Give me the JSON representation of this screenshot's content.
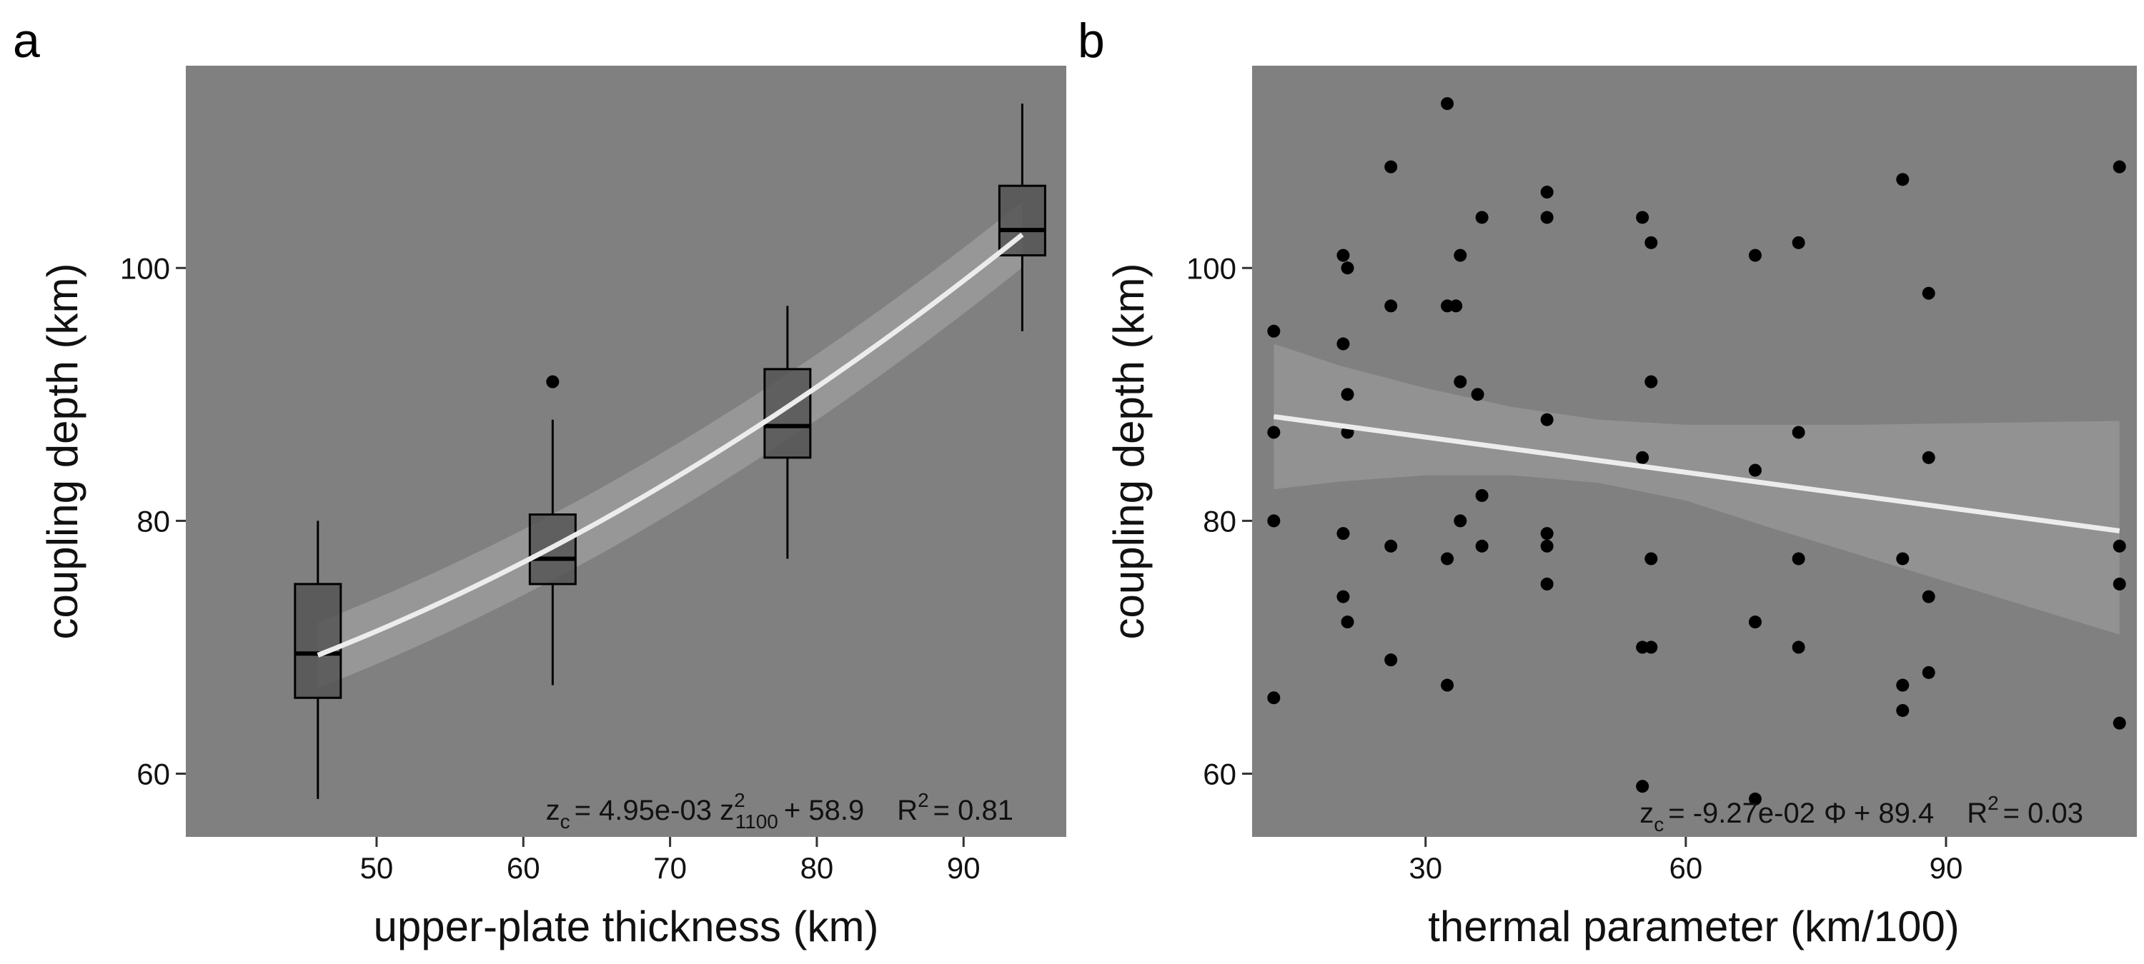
{
  "chart_data": [
    {
      "panel": "a",
      "type": "box",
      "xlabel": "upper-plate thickness (km)",
      "ylabel": "coupling depth (km)",
      "xlim": [
        37,
        97
      ],
      "ylim": [
        55,
        116
      ],
      "xticks": [
        50,
        60,
        70,
        80,
        90
      ],
      "yticks": [
        60,
        80,
        100
      ],
      "boxes": [
        {
          "x": 46,
          "whisker_low": 58,
          "q1": 66,
          "median": 69.5,
          "q3": 75,
          "whisker_high": 80,
          "outliers": []
        },
        {
          "x": 62,
          "whisker_low": 67,
          "q1": 75,
          "median": 77,
          "q3": 80.5,
          "whisker_high": 88,
          "outliers": [
            91
          ]
        },
        {
          "x": 78,
          "whisker_low": 77,
          "q1": 85,
          "median": 87.5,
          "q3": 92,
          "whisker_high": 97,
          "outliers": []
        },
        {
          "x": 94,
          "whisker_low": 95,
          "q1": 101,
          "median": 103,
          "q3": 106.5,
          "whisker_high": 113,
          "outliers": []
        }
      ],
      "fit": {
        "type": "quadratic",
        "a": 0.00495,
        "c": 58.9,
        "x_range": [
          46,
          94
        ],
        "band_halfwidth": 2.6
      },
      "annotation": {
        "z": "z",
        "z_sub": "c",
        "eq_part1": "= 4.95e-03 z",
        "var_sup": "2",
        "var_sub": "1100",
        "eq_part2": "+ 58.9",
        "r": "R",
        "r_sup": "2",
        "r_val": "= 0.81"
      }
    },
    {
      "panel": "b",
      "type": "scatter",
      "xlabel": "thermal parameter (km/100)",
      "ylabel": "coupling depth (km)",
      "xlim": [
        10,
        112
      ],
      "ylim": [
        55,
        116
      ],
      "xticks": [
        30,
        60,
        90
      ],
      "yticks": [
        60,
        80,
        100
      ],
      "points": [
        [
          12.5,
          95
        ],
        [
          12.5,
          87
        ],
        [
          12.5,
          80
        ],
        [
          12.5,
          66
        ],
        [
          20.5,
          101
        ],
        [
          21,
          100
        ],
        [
          20.5,
          94
        ],
        [
          21,
          90
        ],
        [
          21,
          87
        ],
        [
          20.5,
          79
        ],
        [
          20.5,
          74
        ],
        [
          21,
          72
        ],
        [
          26,
          108
        ],
        [
          26,
          97
        ],
        [
          26,
          78
        ],
        [
          26,
          69
        ],
        [
          32.5,
          113
        ],
        [
          32.5,
          97
        ],
        [
          33.5,
          97
        ],
        [
          34,
          101
        ],
        [
          34,
          91
        ],
        [
          34,
          80
        ],
        [
          32.5,
          77
        ],
        [
          32.5,
          67
        ],
        [
          36.5,
          104
        ],
        [
          36,
          90
        ],
        [
          36.5,
          82
        ],
        [
          36.5,
          78
        ],
        [
          44,
          106
        ],
        [
          44,
          104
        ],
        [
          44,
          88
        ],
        [
          44,
          79
        ],
        [
          44,
          78
        ],
        [
          44,
          75
        ],
        [
          55,
          104
        ],
        [
          56,
          102
        ],
        [
          56,
          91
        ],
        [
          55,
          85
        ],
        [
          56,
          77
        ],
        [
          55,
          70
        ],
        [
          56,
          70
        ],
        [
          55,
          59
        ],
        [
          68,
          101
        ],
        [
          68,
          84
        ],
        [
          68,
          72
        ],
        [
          68,
          58
        ],
        [
          73,
          102
        ],
        [
          73,
          87
        ],
        [
          73,
          77
        ],
        [
          73,
          70
        ],
        [
          85,
          107
        ],
        [
          85,
          77
        ],
        [
          85,
          67
        ],
        [
          85,
          65
        ],
        [
          88,
          98
        ],
        [
          88,
          85
        ],
        [
          88,
          74
        ],
        [
          88,
          68
        ],
        [
          110,
          108
        ],
        [
          110,
          78
        ],
        [
          110,
          75
        ],
        [
          110,
          64
        ]
      ],
      "fit": {
        "type": "linear",
        "slope": -0.0927,
        "intercept": 89.4,
        "x_range": [
          12.5,
          110
        ]
      },
      "band": {
        "x": [
          12.5,
          20,
          30,
          40,
          50,
          60,
          70,
          80,
          90,
          100,
          110
        ],
        "lower": [
          82.5,
          83.1,
          83.6,
          83.6,
          83.0,
          81.6,
          79.4,
          77.3,
          75.2,
          73.1,
          71.0
        ],
        "upper": [
          94.0,
          92.3,
          90.5,
          89.0,
          88.0,
          87.6,
          87.6,
          87.6,
          87.7,
          87.8,
          87.9
        ]
      },
      "annotation": {
        "z": "z",
        "z_sub": "c",
        "eq_part1": "= -9.27e-02",
        "phi": "Φ",
        "eq_part2": "+ 89.4",
        "r": "R",
        "r_sup": "2",
        "r_val": "= 0.03"
      }
    }
  ]
}
